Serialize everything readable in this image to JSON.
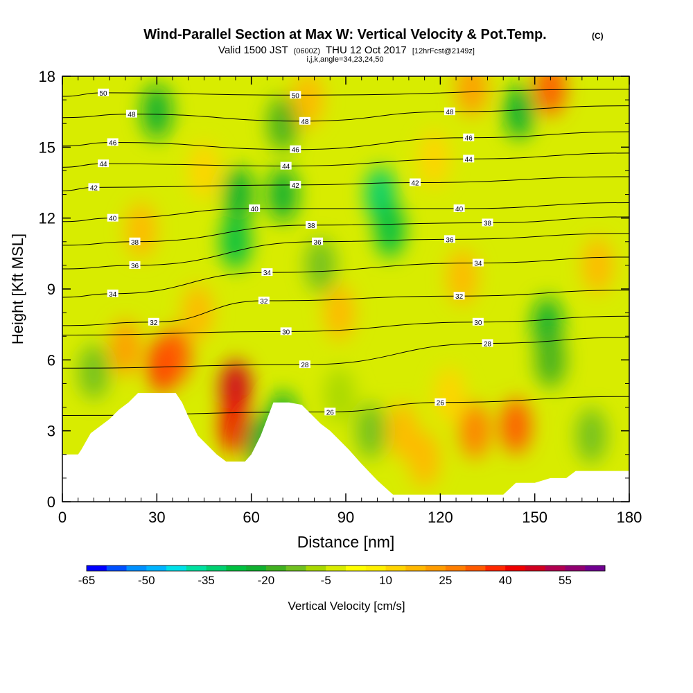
{
  "header": {
    "title": "Wind-Parallel Section at Max W: Vertical Velocity & Pot.Temp.",
    "title_unit": "(C)",
    "valid_prefix": "Valid 1500 JST",
    "valid_utc": "(0600Z)",
    "valid_date": "THU 12 Oct 2017",
    "forecast": "[12hrFcst@2149z]",
    "indices": "i,j,k,angle=34,23,24,50"
  },
  "colors": {
    "terrain": "#ffffff",
    "contour_line": "#000000",
    "frame": "#000000",
    "palette": [
      "#0000ff",
      "#0050ff",
      "#0090ff",
      "#00b4ff",
      "#00e0e8",
      "#00e0a0",
      "#00d070",
      "#00c040",
      "#10b030",
      "#40b020",
      "#70c020",
      "#a8d800",
      "#d8ec00",
      "#ffff00",
      "#fff000",
      "#ffd400",
      "#ffb800",
      "#ff9c00",
      "#ff7e00",
      "#ff5a00",
      "#ff2800",
      "#ee0000",
      "#d00020",
      "#b00050",
      "#900070",
      "#700090"
    ]
  },
  "chart_data": {
    "type": "heatmap",
    "xlabel": "Distance [nm]",
    "ylabel": "Height [Kft MSL]",
    "xlim": [
      0,
      180
    ],
    "ylim": [
      0,
      18
    ],
    "x_ticks": [
      "0",
      "30",
      "60",
      "90",
      "120",
      "150",
      "180"
    ],
    "y_ticks": [
      "0",
      "3",
      "6",
      "9",
      "12",
      "15",
      "18"
    ],
    "colorbar": {
      "label": "Vertical Velocity [cm/s]",
      "min": -65,
      "max": 65,
      "step": 5,
      "tick_labels": [
        "-65",
        "-50",
        "-35",
        "-20",
        "-5",
        "10",
        "25",
        "40",
        "55"
      ]
    },
    "terrain_profile": [
      [
        0,
        2.0
      ],
      [
        5,
        2.0
      ],
      [
        6,
        2.2
      ],
      [
        9,
        2.9
      ],
      [
        12,
        3.2
      ],
      [
        15,
        3.5
      ],
      [
        18,
        3.9
      ],
      [
        21,
        4.2
      ],
      [
        24,
        4.6
      ],
      [
        26,
        4.6
      ],
      [
        30,
        4.6
      ],
      [
        36,
        4.6
      ],
      [
        38,
        4.2
      ],
      [
        40,
        3.6
      ],
      [
        43,
        2.8
      ],
      [
        46,
        2.4
      ],
      [
        49,
        2.0
      ],
      [
        52,
        1.7
      ],
      [
        58,
        1.7
      ],
      [
        60,
        2.0
      ],
      [
        63,
        2.8
      ],
      [
        65,
        3.5
      ],
      [
        67,
        4.2
      ],
      [
        72,
        4.2
      ],
      [
        76,
        4.1
      ],
      [
        79,
        3.7
      ],
      [
        82,
        3.3
      ],
      [
        85,
        3.0
      ],
      [
        88,
        2.6
      ],
      [
        91,
        2.2
      ],
      [
        95,
        1.6
      ],
      [
        100,
        0.9
      ],
      [
        105,
        0.3
      ],
      [
        140,
        0.3
      ],
      [
        144,
        0.8
      ],
      [
        150,
        0.8
      ],
      [
        155,
        1.0
      ],
      [
        160,
        1.0
      ],
      [
        163,
        1.3
      ],
      [
        180,
        1.3
      ]
    ],
    "velocity_features": [
      {
        "x": 32,
        "y": 5.8,
        "value": 35
      },
      {
        "x": 36,
        "y": 6.2,
        "value": 30
      },
      {
        "x": 55,
        "y": 4.8,
        "value": 45
      },
      {
        "x": 55,
        "y": 3.2,
        "value": 40
      },
      {
        "x": 70,
        "y": 3.5,
        "value": -25
      },
      {
        "x": 63,
        "y": 2.5,
        "value": -22
      },
      {
        "x": 55,
        "y": 11.0,
        "value": -28
      },
      {
        "x": 56,
        "y": 13.0,
        "value": -22
      },
      {
        "x": 70,
        "y": 13.0,
        "value": -25
      },
      {
        "x": 70,
        "y": 16.0,
        "value": -18
      },
      {
        "x": 101,
        "y": 13.0,
        "value": -35
      },
      {
        "x": 104,
        "y": 11.5,
        "value": -28
      },
      {
        "x": 30,
        "y": 16.5,
        "value": -22
      },
      {
        "x": 145,
        "y": 16.5,
        "value": -25
      },
      {
        "x": 154,
        "y": 7.5,
        "value": -22
      },
      {
        "x": 155,
        "y": 6.0,
        "value": -20
      },
      {
        "x": 98,
        "y": 3.0,
        "value": -12
      },
      {
        "x": 88,
        "y": 4.5,
        "value": -8
      },
      {
        "x": 131,
        "y": 3.0,
        "value": 25
      },
      {
        "x": 144,
        "y": 3.2,
        "value": 30
      },
      {
        "x": 108,
        "y": 3.0,
        "value": 15
      },
      {
        "x": 115,
        "y": 1.8,
        "value": 18
      },
      {
        "x": 123,
        "y": 4.5,
        "value": 12
      },
      {
        "x": 168,
        "y": 2.8,
        "value": -15
      },
      {
        "x": 10,
        "y": 5.5,
        "value": -12
      },
      {
        "x": 20,
        "y": 6.5,
        "value": 20
      },
      {
        "x": 78,
        "y": 17.0,
        "value": 15
      },
      {
        "x": 155,
        "y": 17.5,
        "value": 30
      },
      {
        "x": 130,
        "y": 17.5,
        "value": 20
      },
      {
        "x": 25,
        "y": 11.5,
        "value": 18
      },
      {
        "x": 43,
        "y": 8.0,
        "value": 15
      },
      {
        "x": 88,
        "y": 8.0,
        "value": 15
      },
      {
        "x": 127,
        "y": 9.5,
        "value": 15
      },
      {
        "x": 170,
        "y": 10.0,
        "value": 15
      },
      {
        "x": 118,
        "y": 14.5,
        "value": 12
      },
      {
        "x": 45,
        "y": 14.0,
        "value": 12
      },
      {
        "x": 82,
        "y": 10.0,
        "value": -12
      }
    ],
    "contour_labels": [
      {
        "text": "50",
        "x": 13,
        "y": 17.3
      },
      {
        "text": "50",
        "x": 74,
        "y": 17.2
      },
      {
        "text": "48",
        "x": 22,
        "y": 16.4
      },
      {
        "text": "48",
        "x": 77,
        "y": 16.1
      },
      {
        "text": "48",
        "x": 123,
        "y": 16.5
      },
      {
        "text": "46",
        "x": 16,
        "y": 15.2
      },
      {
        "text": "46",
        "x": 74,
        "y": 14.9
      },
      {
        "text": "46",
        "x": 129,
        "y": 15.4
      },
      {
        "text": "44",
        "x": 13,
        "y": 14.3
      },
      {
        "text": "44",
        "x": 71,
        "y": 14.2
      },
      {
        "text": "44",
        "x": 129,
        "y": 14.5
      },
      {
        "text": "42",
        "x": 10,
        "y": 13.3
      },
      {
        "text": "42",
        "x": 74,
        "y": 13.4
      },
      {
        "text": "42",
        "x": 112,
        "y": 13.5
      },
      {
        "text": "40",
        "x": 16,
        "y": 12.0
      },
      {
        "text": "40",
        "x": 61,
        "y": 12.4
      },
      {
        "text": "40",
        "x": 126,
        "y": 12.4
      },
      {
        "text": "38",
        "x": 23,
        "y": 11.0
      },
      {
        "text": "38",
        "x": 79,
        "y": 11.7
      },
      {
        "text": "38",
        "x": 135,
        "y": 11.8
      },
      {
        "text": "36",
        "x": 23,
        "y": 10.0
      },
      {
        "text": "36",
        "x": 81,
        "y": 11.0
      },
      {
        "text": "36",
        "x": 123,
        "y": 11.1
      },
      {
        "text": "34",
        "x": 16,
        "y": 8.8
      },
      {
        "text": "34",
        "x": 65,
        "y": 9.7
      },
      {
        "text": "34",
        "x": 132,
        "y": 10.1
      },
      {
        "text": "32",
        "x": 29,
        "y": 7.6
      },
      {
        "text": "32",
        "x": 64,
        "y": 8.5
      },
      {
        "text": "32",
        "x": 126,
        "y": 8.7
      },
      {
        "text": "30",
        "x": 71,
        "y": 7.2
      },
      {
        "text": "30",
        "x": 132,
        "y": 7.6
      },
      {
        "text": "28",
        "x": 77,
        "y": 5.8
      },
      {
        "text": "28",
        "x": 135,
        "y": 6.7
      },
      {
        "text": "26",
        "x": 85,
        "y": 3.8
      },
      {
        "text": "26",
        "x": 120,
        "y": 4.2
      }
    ]
  }
}
